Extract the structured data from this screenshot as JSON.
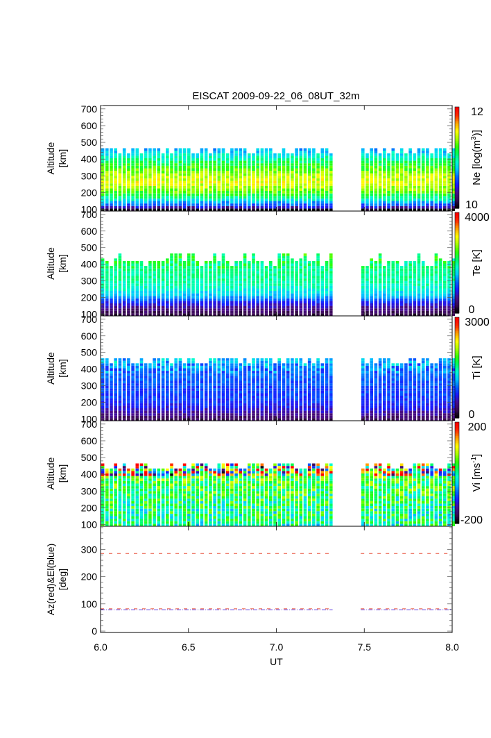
{
  "chart_data": [
    {
      "type": "heatmap",
      "title": "EISCAT 2009-09-22_06_08UT_32m",
      "panel": "Ne",
      "xlabel": "",
      "ylabel": "Altitude\n[km]",
      "ylabel_lines": [
        "Altitude",
        "[km]"
      ],
      "xlim": [
        6.0,
        8.0
      ],
      "ylim": [
        90,
        720
      ],
      "yticks": [
        100,
        200,
        300,
        400,
        500,
        600,
        700
      ],
      "colorbar": {
        "label": "Ne [log(m",
        "label_sup": "3",
        "label_end": ")]",
        "min": 10,
        "max": 12,
        "tick_labels": [
          "12",
          "10"
        ]
      },
      "data_segments": [
        [
          6.0,
          7.32
        ],
        [
          7.48,
          8.0
        ]
      ],
      "alt_range": [
        90,
        465
      ],
      "profile": {
        "description": "peak ~11.5 near 250 km, ~10.8 at 450 km, ~10 at 100 km",
        "alts": [
          90,
          110,
          150,
          200,
          250,
          300,
          350,
          400,
          450,
          470
        ],
        "values": [
          10.0,
          10.5,
          10.9,
          11.3,
          11.5,
          11.4,
          11.2,
          10.95,
          10.75,
          10.7
        ]
      }
    },
    {
      "type": "heatmap",
      "panel": "Te",
      "ylabel_lines": [
        "Altitude",
        "[km]"
      ],
      "xlim": [
        6.0,
        8.0
      ],
      "ylim": [
        90,
        720
      ],
      "yticks": [
        100,
        200,
        300,
        400,
        500,
        600,
        700
      ],
      "colorbar": {
        "label": "Te [K]",
        "min": 0,
        "max": 4000,
        "tick_labels": [
          "4000",
          "0"
        ]
      },
      "data_segments": [
        [
          6.0,
          7.32
        ],
        [
          7.48,
          8.0
        ]
      ],
      "alt_range": [
        90,
        420
      ],
      "profile": {
        "description": "~300 K at 100 km rising to ~2000 K above 250 km",
        "alts": [
          90,
          120,
          160,
          200,
          250,
          300,
          400,
          460
        ],
        "values": [
          250,
          500,
          900,
          1500,
          1850,
          2000,
          2050,
          2200
        ]
      }
    },
    {
      "type": "heatmap",
      "panel": "Ti",
      "ylabel_lines": [
        "Altitude",
        "[km]"
      ],
      "xlim": [
        6.0,
        8.0
      ],
      "ylim": [
        90,
        720
      ],
      "yticks": [
        100,
        200,
        300,
        400,
        500,
        600,
        700
      ],
      "colorbar": {
        "label": "Ti [K]",
        "min": 0,
        "max": 3000,
        "tick_labels": [
          "3000",
          "0"
        ]
      },
      "data_segments": [
        [
          6.0,
          7.32
        ],
        [
          7.48,
          8.0
        ]
      ],
      "alt_range": [
        90,
        465
      ],
      "profile": {
        "description": "~300 K at 100 km rising to ~1100 K at 450 km",
        "alts": [
          90,
          120,
          160,
          200,
          300,
          400,
          465
        ],
        "values": [
          250,
          450,
          650,
          780,
          850,
          950,
          1150
        ]
      }
    },
    {
      "type": "heatmap",
      "panel": "Vi",
      "ylabel_lines": [
        "Altitude",
        "[km]"
      ],
      "xlim": [
        6.0,
        8.0
      ],
      "ylim": [
        90,
        720
      ],
      "yticks": [
        100,
        200,
        300,
        400,
        500,
        600,
        700
      ],
      "colorbar": {
        "label": "Vi [ms",
        "label_sup": "-1",
        "label_end": "]",
        "min": -200,
        "max": 200,
        "tick_labels": [
          "200",
          "-200"
        ]
      },
      "data_segments": [
        [
          6.0,
          7.32
        ],
        [
          7.48,
          8.0
        ]
      ],
      "alt_range": [
        90,
        465
      ],
      "profile": {
        "description": "mostly near 0 to +50 m/s, noisy extremes near top",
        "alts": [
          90,
          200,
          300,
          400,
          465
        ],
        "values": [
          0,
          10,
          30,
          40,
          60
        ]
      }
    },
    {
      "type": "line",
      "panel": "AzEl",
      "ylabel_lines": [
        "Az(red)&El(blue)",
        "[deg]"
      ],
      "xlabel": "UT",
      "xlim": [
        6.0,
        8.0
      ],
      "ylim": [
        -5,
        385
      ],
      "yticks": [
        0,
        100,
        200,
        300
      ],
      "xticks": [
        6.0,
        6.5,
        7.0,
        7.5,
        8.0
      ],
      "xtick_labels": [
        "6.0",
        "6.5",
        "7.0",
        "7.5",
        "8.0"
      ],
      "series": [
        {
          "name": "Az",
          "color": "#e8503a",
          "style": "dashed",
          "segments": [
            {
              "x": [
                6.0,
                7.32
              ],
              "y": 285
            },
            {
              "x": [
                6.0,
                7.32
              ],
              "y": 82
            },
            {
              "x": [
                7.48,
                8.0
              ],
              "y": 285
            },
            {
              "x": [
                7.48,
                8.0
              ],
              "y": 82
            }
          ]
        },
        {
          "name": "El",
          "color": "#5533dd",
          "style": "dashdot",
          "segments": [
            {
              "x": [
                6.0,
                7.32
              ],
              "y": 78
            },
            {
              "x": [
                7.48,
                8.0
              ],
              "y": 78
            }
          ]
        }
      ]
    }
  ],
  "colormap": [
    "#000000",
    "#3b0a52",
    "#4a0d8f",
    "#1a1aff",
    "#0066ff",
    "#00c8ff",
    "#00ffd0",
    "#00ff60",
    "#33ff00",
    "#aaff00",
    "#ffff00",
    "#ffa500",
    "#ff3000",
    "#ff0000"
  ]
}
